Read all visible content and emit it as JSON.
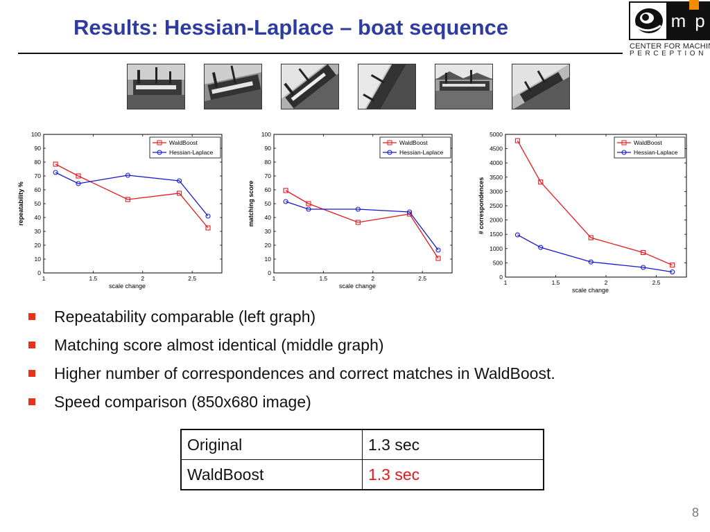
{
  "slide": {
    "title": "Results: Hessian-Laplace – boat sequence",
    "page_number": "8"
  },
  "logo": {
    "letter_m": "m",
    "letter_p": "p",
    "line1": "CENTER FOR MACHINE",
    "line2": "PERCEPTION",
    "orange_color": "#f28c00"
  },
  "thumbnails": [
    {
      "name": "boat-image-1"
    },
    {
      "name": "boat-image-2"
    },
    {
      "name": "boat-image-3"
    },
    {
      "name": "boat-image-4"
    },
    {
      "name": "boat-image-5"
    },
    {
      "name": "boat-image-6"
    }
  ],
  "colors": {
    "waldboost": "#e8161b",
    "hessian": "#1414d2",
    "title": "#2e3ca0",
    "bullet": "#e8331b"
  },
  "chart_data": [
    {
      "type": "line",
      "title": "",
      "xlabel": "scale change",
      "ylabel": "repeatability %",
      "xlim": [
        1,
        2.8
      ],
      "ylim": [
        0,
        100
      ],
      "xticks": [
        1,
        1.5,
        2,
        2.5
      ],
      "yticks": [
        0,
        10,
        20,
        30,
        40,
        50,
        60,
        70,
        80,
        90,
        100
      ],
      "legend_position": "top-right",
      "series": [
        {
          "name": "WaldBoost",
          "marker": "square",
          "x": [
            1.12,
            1.35,
            1.85,
            2.37,
            2.66
          ],
          "y": [
            78.5,
            70,
            53,
            57.5,
            32.5
          ]
        },
        {
          "name": "Hessian-Laplace",
          "marker": "circle",
          "x": [
            1.12,
            1.35,
            1.85,
            2.37,
            2.66
          ],
          "y": [
            72.5,
            64.5,
            70.5,
            66.5,
            41
          ]
        }
      ]
    },
    {
      "type": "line",
      "title": "",
      "xlabel": "scale change",
      "ylabel": "matching score",
      "xlim": [
        1,
        2.8
      ],
      "ylim": [
        0,
        100
      ],
      "xticks": [
        1,
        1.5,
        2,
        2.5
      ],
      "yticks": [
        0,
        10,
        20,
        30,
        40,
        50,
        60,
        70,
        80,
        90,
        100
      ],
      "legend_position": "top-right",
      "series": [
        {
          "name": "WaldBoost",
          "marker": "square",
          "x": [
            1.12,
            1.35,
            1.85,
            2.37,
            2.66
          ],
          "y": [
            59.5,
            50,
            36.5,
            42.5,
            10.5
          ]
        },
        {
          "name": "Hessian-Laplace",
          "marker": "circle",
          "x": [
            1.12,
            1.35,
            1.85,
            2.37,
            2.66
          ],
          "y": [
            51.5,
            46,
            46,
            44,
            16.5
          ]
        }
      ]
    },
    {
      "type": "line",
      "title": "",
      "xlabel": "scale change",
      "ylabel": "# correspondences",
      "xlim": [
        1,
        2.8
      ],
      "ylim": [
        0,
        5000
      ],
      "xticks": [
        1,
        1.5,
        2,
        2.5
      ],
      "yticks": [
        0,
        500,
        1000,
        1500,
        2000,
        2500,
        3000,
        3500,
        4000,
        4500,
        5000
      ],
      "legend_position": "top-right",
      "series": [
        {
          "name": "WaldBoost",
          "marker": "square",
          "x": [
            1.12,
            1.35,
            1.85,
            2.37,
            2.66
          ],
          "y": [
            4780,
            3330,
            1380,
            860,
            420
          ]
        },
        {
          "name": "Hessian-Laplace",
          "marker": "circle",
          "x": [
            1.12,
            1.35,
            1.85,
            2.37,
            2.66
          ],
          "y": [
            1480,
            1040,
            530,
            340,
            180
          ]
        }
      ]
    }
  ],
  "bullets": [
    "Repeatability comparable (left graph)",
    "Matching score almost identical (middle graph)",
    "Higher number of correspondences and correct matches in WaldBoost.",
    "Speed comparison (850x680 image)"
  ],
  "speed_table": {
    "rows": [
      {
        "label": "Original",
        "value": "1.3 sec",
        "highlight": false
      },
      {
        "label": "WaldBoost",
        "value": "1.3 sec",
        "highlight": true
      }
    ]
  }
}
